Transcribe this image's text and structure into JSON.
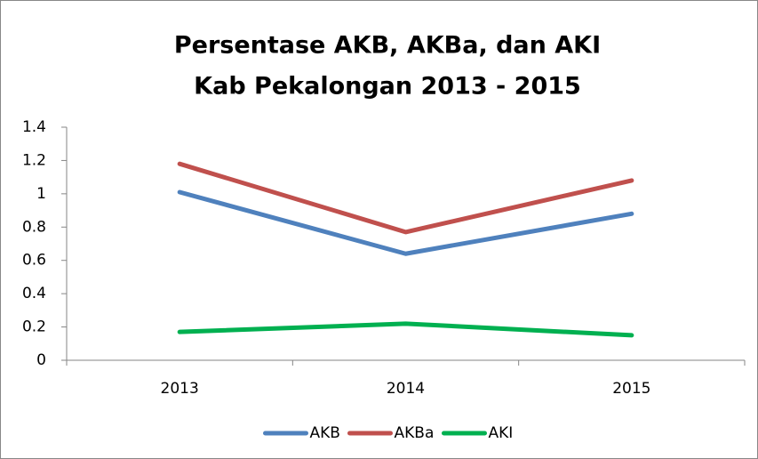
{
  "chart_data": {
    "type": "line",
    "title": "Persentase AKB, AKBa, dan AKI",
    "subtitle": "Kab Pekalongan 2013 - 2015",
    "categories": [
      "2013",
      "2014",
      "2015"
    ],
    "series": [
      {
        "name": "AKB",
        "color": "#4f81bd",
        "values": [
          1.01,
          0.64,
          0.88
        ]
      },
      {
        "name": "AKBa",
        "color": "#c0504d",
        "values": [
          1.18,
          0.77,
          1.08
        ]
      },
      {
        "name": "AKI",
        "color": "#00b050",
        "values": [
          0.17,
          0.22,
          0.15
        ]
      }
    ],
    "ylim": [
      0,
      1.4
    ],
    "yticks": [
      0,
      0.2,
      0.4,
      0.6,
      0.8,
      1,
      1.2,
      1.4
    ],
    "grid": false,
    "legend": "bottom"
  }
}
